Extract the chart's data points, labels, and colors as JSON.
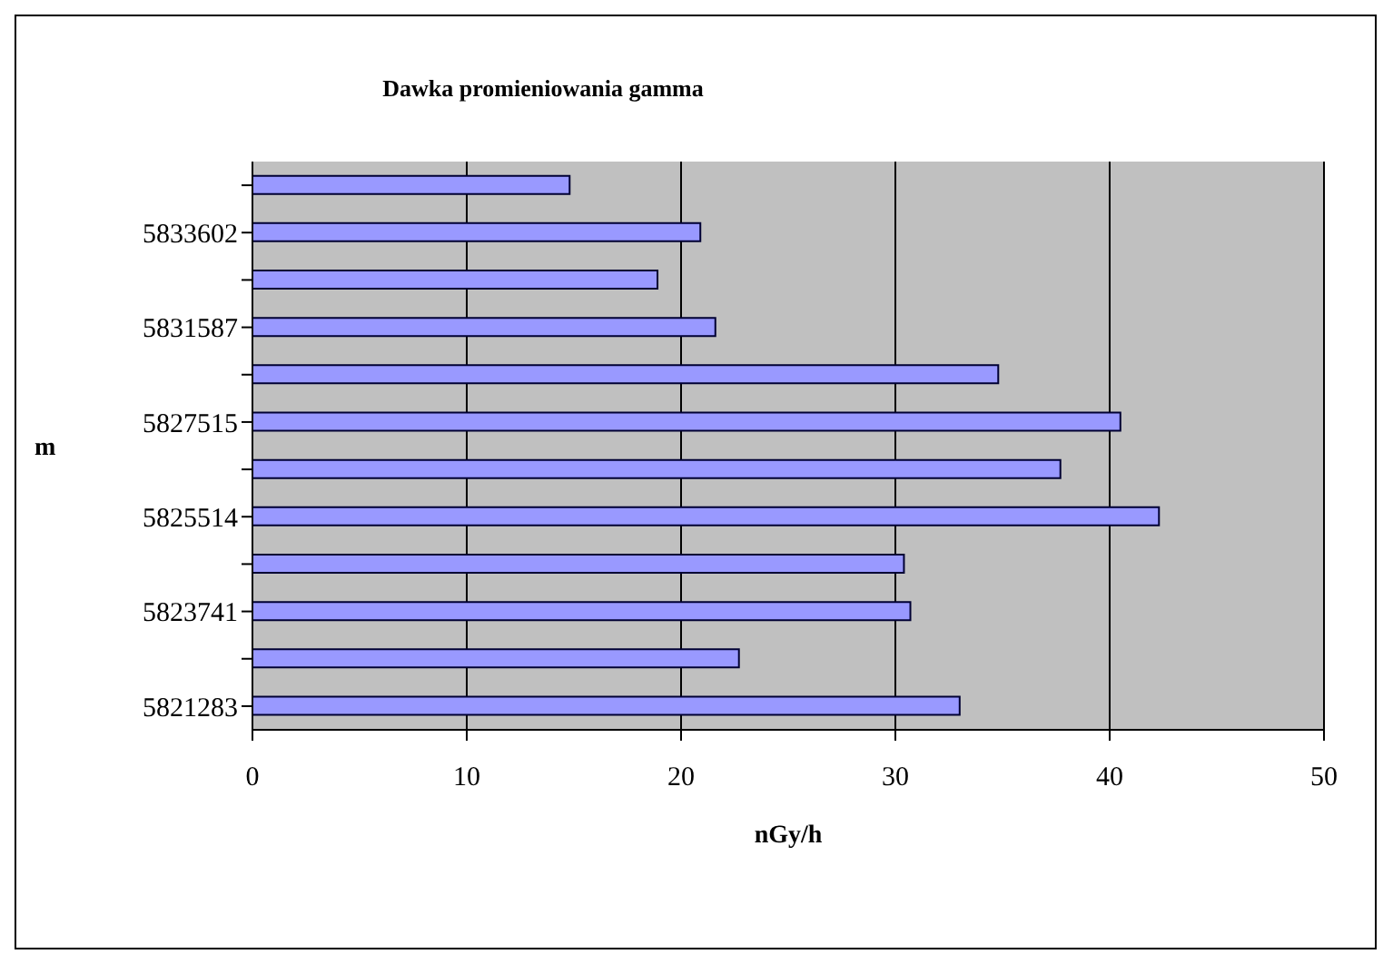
{
  "chart_data": {
    "type": "bar",
    "orientation": "horizontal",
    "title": "Dawka promieniowania gamma",
    "xlabel": "nGy/h",
    "ylabel": "m",
    "categories": [
      null,
      "5833602",
      null,
      "5831587",
      null,
      "5827515",
      null,
      "5825514",
      null,
      "5823741",
      null,
      "5821283"
    ],
    "values": [
      14.8,
      20.9,
      18.9,
      21.6,
      34.8,
      40.5,
      37.7,
      42.3,
      30.4,
      30.7,
      22.7,
      33.0
    ],
    "color": "#9999ff",
    "xlim": [
      0,
      50
    ],
    "xticks": [
      0,
      10,
      20,
      30,
      40,
      50
    ],
    "grid": "x"
  }
}
